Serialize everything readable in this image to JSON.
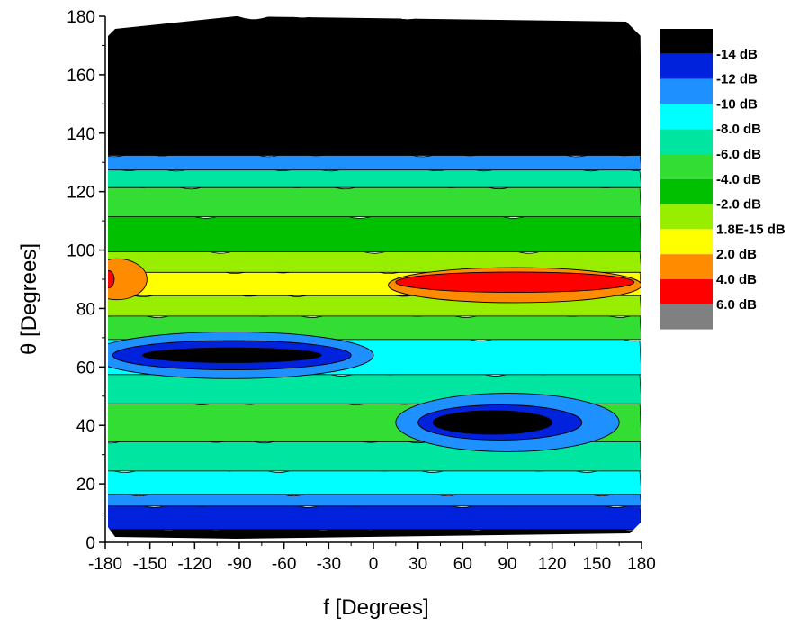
{
  "chart_data": {
    "type": "heatmap",
    "xlabel": "f  [Degrees]",
    "ylabel": "θ [Degrees]",
    "xlim": [
      -180,
      180
    ],
    "ylim": [
      0,
      180
    ],
    "xticks": [
      -180,
      -150,
      -120,
      -90,
      -60,
      -30,
      0,
      30,
      60,
      90,
      120,
      150,
      180
    ],
    "yticks": [
      0,
      20,
      40,
      60,
      80,
      100,
      120,
      140,
      160,
      180
    ],
    "grid": false,
    "legend_position": "right",
    "levels": [
      {
        "label": "-14 dB",
        "color": "#000000"
      },
      {
        "label": "-12 dB",
        "color": "#0022dd"
      },
      {
        "label": "-10 dB",
        "color": "#1e90ff"
      },
      {
        "label": "-8.0 dB",
        "color": "#00ffff"
      },
      {
        "label": "-6.0 dB",
        "color": "#00e5a0"
      },
      {
        "label": "-4.0 dB",
        "color": "#33dd33"
      },
      {
        "label": "-2.0 dB",
        "color": "#00c000"
      },
      {
        "label": "1.8E-15 dB",
        "color": "#99ee00"
      },
      {
        "label": "2.0 dB",
        "color": "#ffff00"
      },
      {
        "label": "4.0 dB",
        "color": "#ff8c00"
      },
      {
        "label": "6.0 dB",
        "color": "#ff0000"
      },
      {
        "label": "",
        "color": "#808080"
      }
    ],
    "bands": [
      {
        "y_from": 0,
        "y_to": 5,
        "level": "-14 dB"
      },
      {
        "y_from": 5,
        "y_to": 13,
        "level": "-12 dB"
      },
      {
        "y_from": 13,
        "y_to": 17,
        "level": "-10 dB"
      },
      {
        "y_from": 17,
        "y_to": 25,
        "level": "-8.0 dB"
      },
      {
        "y_from": 25,
        "y_to": 35,
        "level": "-6.0 dB"
      },
      {
        "y_from": 35,
        "y_to": 48,
        "level": "-4.0 dB"
      },
      {
        "y_from": 48,
        "y_to": 58,
        "level": "-6.0 dB"
      },
      {
        "y_from": 58,
        "y_to": 70,
        "level": "-8.0 dB"
      },
      {
        "y_from": 70,
        "y_to": 78,
        "level": "-4.0 dB"
      },
      {
        "y_from": 78,
        "y_to": 85,
        "level": "1.8E-15 dB"
      },
      {
        "y_from": 85,
        "y_to": 93,
        "level": "2.0 dB"
      },
      {
        "y_from": 93,
        "y_to": 100,
        "level": "1.8E-15 dB"
      },
      {
        "y_from": 100,
        "y_to": 112,
        "level": "-2.0 dB"
      },
      {
        "y_from": 112,
        "y_to": 122,
        "level": "-4.0 dB"
      },
      {
        "y_from": 122,
        "y_to": 128,
        "level": "-6.0 dB"
      },
      {
        "y_from": 128,
        "y_to": 133,
        "level": "-10 dB"
      },
      {
        "y_from": 133,
        "y_to": 180,
        "level": "-14 dB"
      }
    ],
    "regions": [
      {
        "name": "main-lobe",
        "x_center": 95,
        "y_center": 88,
        "x_radius": 85,
        "y_radius": 6,
        "level": "4.0 dB"
      },
      {
        "name": "main-lobe-core",
        "x_center": 95,
        "y_center": 89,
        "x_radius": 80,
        "y_radius": 3.5,
        "level": "6.0 dB"
      },
      {
        "name": "back-lobe",
        "x_center": -172,
        "y_center": 90,
        "x_radius": 20,
        "y_radius": 7,
        "level": "4.0 dB"
      },
      {
        "name": "back-lobe-core",
        "x_center": -178,
        "y_center": 90,
        "x_radius": 4,
        "y_radius": 3,
        "level": "6.0 dB"
      },
      {
        "name": "null-upper-halo",
        "x_center": -95,
        "y_center": 64,
        "x_radius": 95,
        "y_radius": 8,
        "level": "-10 dB"
      },
      {
        "name": "null-upper-ring",
        "x_center": -95,
        "y_center": 64,
        "x_radius": 80,
        "y_radius": 5,
        "level": "-12 dB"
      },
      {
        "name": "null-upper-core",
        "x_center": -95,
        "y_center": 64,
        "x_radius": 60,
        "y_radius": 2.5,
        "level": "-14 dB"
      },
      {
        "name": "null-lower-halo",
        "x_center": 90,
        "y_center": 41,
        "x_radius": 75,
        "y_radius": 10,
        "level": "-10 dB"
      },
      {
        "name": "null-lower-ring",
        "x_center": 85,
        "y_center": 41,
        "x_radius": 55,
        "y_radius": 6,
        "level": "-12 dB"
      },
      {
        "name": "null-lower-core",
        "x_center": 80,
        "y_center": 41,
        "x_radius": 40,
        "y_radius": 4,
        "level": "-14 dB"
      }
    ]
  }
}
